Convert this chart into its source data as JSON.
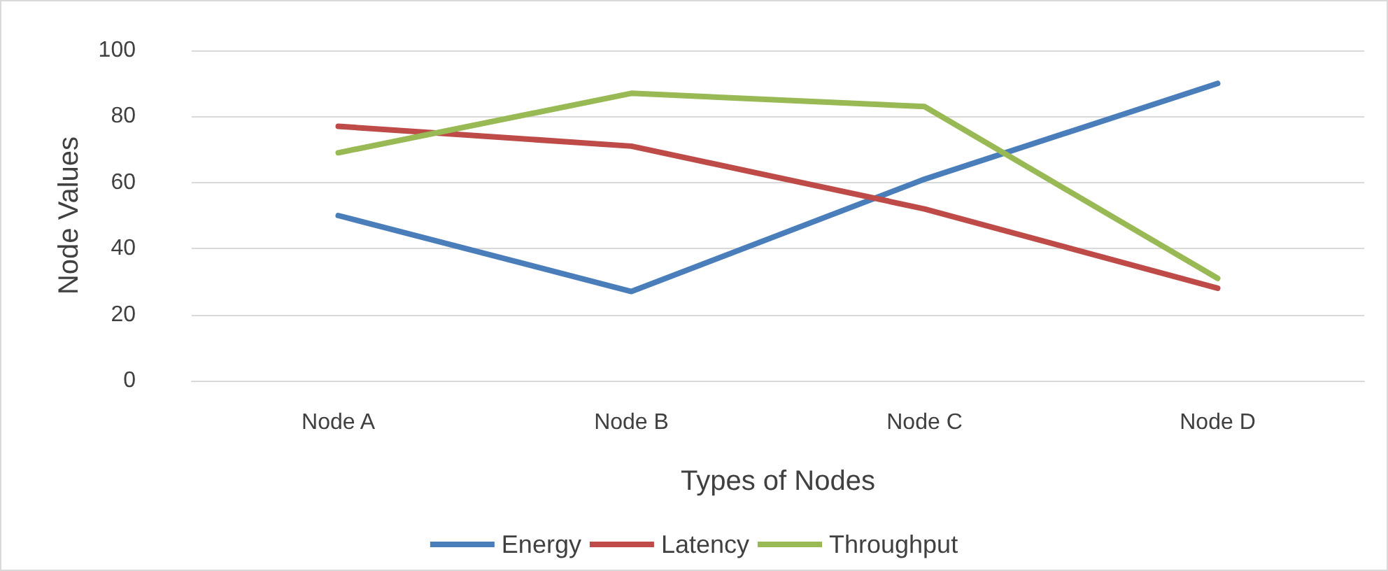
{
  "chart_data": {
    "type": "line",
    "xlabel": "Types of Nodes",
    "ylabel": "Node Values",
    "categories": [
      "Node A",
      "Node B",
      "Node C",
      "Node D"
    ],
    "series": [
      {
        "name": "Energy",
        "color": "#4a7ebb",
        "values": [
          50,
          27,
          61,
          90
        ]
      },
      {
        "name": "Latency",
        "color": "#be4b48",
        "values": [
          77,
          71,
          52,
          28
        ]
      },
      {
        "name": "Throughput",
        "color": "#98b954",
        "values": [
          69,
          87,
          83,
          31
        ]
      }
    ],
    "ylim": [
      0,
      100
    ],
    "yticks": [
      0,
      20,
      40,
      60,
      80,
      100
    ],
    "grid": "y",
    "legend": "bottom",
    "marker": "none",
    "line_style": "solid"
  }
}
